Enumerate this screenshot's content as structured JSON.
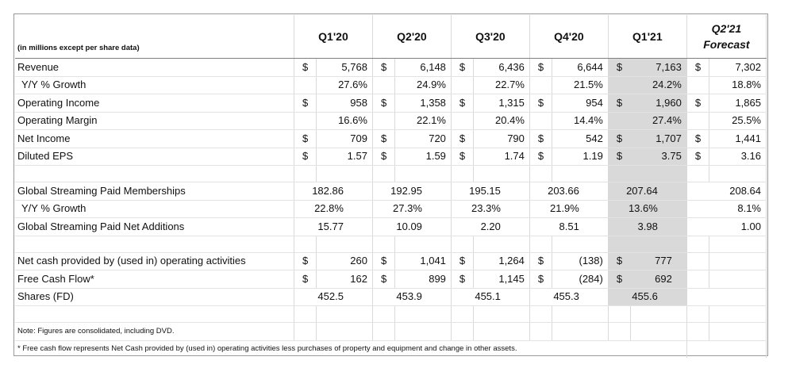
{
  "header": {
    "units_label": "(in millions except per share data)",
    "periods": [
      "Q1'20",
      "Q2'20",
      "Q3'20",
      "Q4'20",
      "Q1'21"
    ],
    "forecast_period": "Q2'21",
    "forecast_label": "Forecast"
  },
  "currency_symbol": "$",
  "rows": {
    "revenue": {
      "label": "Revenue",
      "values": [
        "5,768",
        "6,148",
        "6,436",
        "6,644",
        "7,163",
        "7,302"
      ]
    },
    "revenue_growth": {
      "label": "Y/Y % Growth",
      "values": [
        "27.6%",
        "24.9%",
        "22.7%",
        "21.5%",
        "24.2%",
        "18.8%"
      ]
    },
    "operating_income": {
      "label": "Operating Income",
      "values": [
        "958",
        "1,358",
        "1,315",
        "954",
        "1,960",
        "1,865"
      ]
    },
    "operating_margin": {
      "label": "Operating Margin",
      "values": [
        "16.6%",
        "22.1%",
        "20.4%",
        "14.4%",
        "27.4%",
        "25.5%"
      ]
    },
    "net_income": {
      "label": "Net Income",
      "values": [
        "709",
        "720",
        "790",
        "542",
        "1,707",
        "1,441"
      ]
    },
    "diluted_eps": {
      "label": "Diluted EPS",
      "values": [
        "1.57",
        "1.59",
        "1.74",
        "1.19",
        "3.75",
        "3.16"
      ]
    },
    "paid_memberships": {
      "label": "Global Streaming Paid Memberships",
      "values": [
        "182.86",
        "192.95",
        "195.15",
        "203.66",
        "207.64",
        "208.64"
      ]
    },
    "memberships_growth": {
      "label": "Y/Y % Growth",
      "values": [
        "22.8%",
        "27.3%",
        "23.3%",
        "21.9%",
        "13.6%",
        "8.1%"
      ]
    },
    "net_additions": {
      "label": "Global Streaming Paid Net Additions",
      "values": [
        "15.77",
        "10.09",
        "2.20",
        "8.51",
        "3.98",
        "1.00"
      ]
    },
    "operating_cash": {
      "label": "Net cash provided by (used in) operating activities",
      "values": [
        "260",
        "1,041",
        "1,264",
        "(138)",
        "777"
      ]
    },
    "free_cash_flow": {
      "label": "Free Cash Flow*",
      "values": [
        "162",
        "899",
        "1,145",
        "(284)",
        "692"
      ]
    },
    "shares_fd": {
      "label": "Shares (FD)",
      "values": [
        "452.5",
        "453.9",
        "455.1",
        "455.3",
        "455.6"
      ]
    }
  },
  "notes": {
    "note1": "Note: Figures are consolidated, including DVD.",
    "note2": "* Free cash flow represents Net Cash provided by (used in) operating activities less purchases of property and equipment and change in other assets."
  }
}
